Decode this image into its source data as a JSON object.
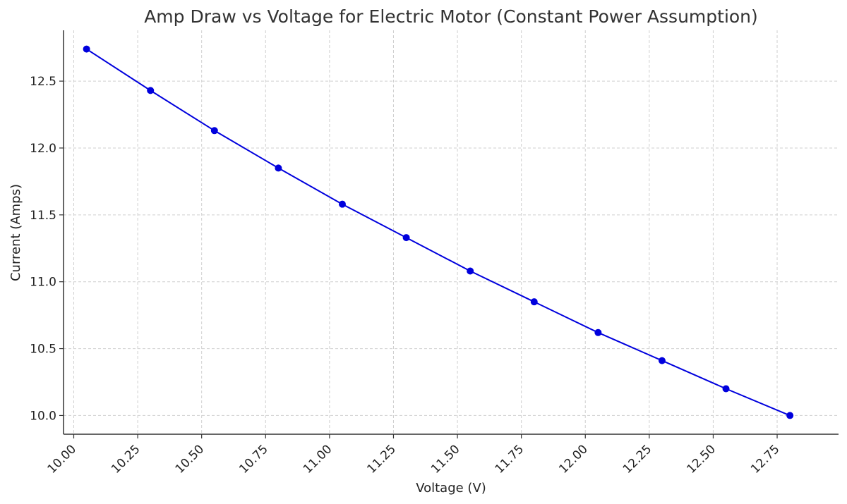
{
  "chart_data": {
    "type": "line",
    "title": "Amp Draw vs Voltage for Electric Motor (Constant Power Assumption)",
    "xlabel": "Voltage (V)",
    "ylabel": "Current (Amps)",
    "x": [
      10.05,
      10.3,
      10.55,
      10.8,
      11.05,
      11.3,
      11.55,
      11.8,
      12.05,
      12.3,
      12.55,
      12.8
    ],
    "series": [
      {
        "values": [
          12.74,
          12.43,
          12.13,
          11.85,
          11.58,
          11.33,
          11.08,
          10.85,
          10.62,
          10.41,
          10.2,
          10.0
        ],
        "color": "#0000dd",
        "marker": "circle"
      }
    ],
    "xlim": [
      9.96,
      12.99
    ],
    "ylim": [
      9.86,
      12.88
    ],
    "xticks": [
      "10.00",
      "10.25",
      "10.50",
      "10.75",
      "11.00",
      "11.25",
      "11.50",
      "11.75",
      "12.00",
      "12.25",
      "12.50",
      "12.75"
    ],
    "yticks": [
      "10.0",
      "10.5",
      "11.0",
      "11.5",
      "12.0",
      "12.5"
    ],
    "grid": true,
    "legend": "none"
  }
}
